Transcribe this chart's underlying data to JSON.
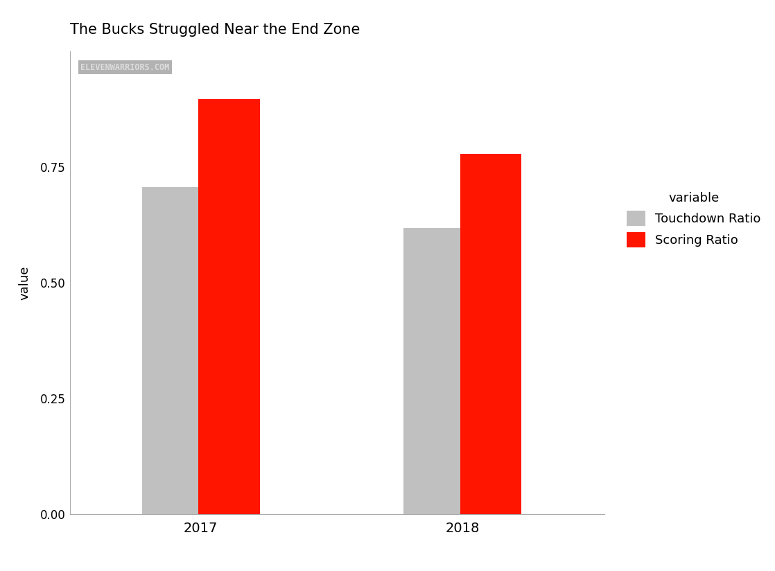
{
  "title": "The Bucks Struggled Near the End Zone",
  "years": [
    "2017",
    "2018"
  ],
  "touchdown_ratio": [
    0.706,
    0.618
  ],
  "scoring_ratio": [
    0.897,
    0.778
  ],
  "td_color": "#c0c0c0",
  "scoring_color": "#ff1500",
  "ylabel": "value",
  "ylim": [
    0,
    1.0
  ],
  "yticks": [
    0.0,
    0.25,
    0.5,
    0.75
  ],
  "legend_title": "variable",
  "legend_labels": [
    "Touchdown Ratio",
    "Scoring Ratio"
  ],
  "watermark": "ELEVENWARRIORS.COM",
  "background_color": "#ffffff",
  "bar_width": 0.28,
  "group_centers": [
    1.0,
    2.2
  ]
}
